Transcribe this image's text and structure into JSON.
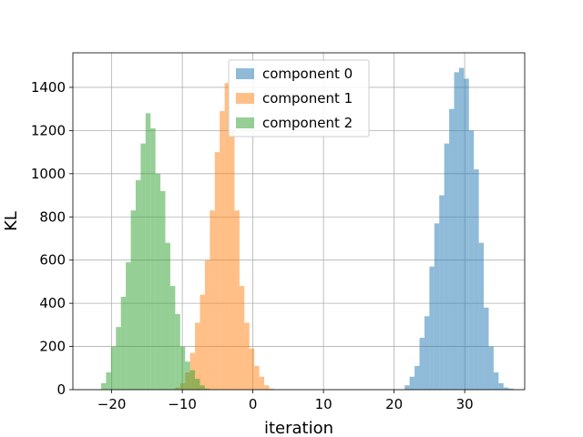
{
  "chart_data": {
    "type": "histogram",
    "title": "",
    "xlabel": "iteration",
    "ylabel": "KL",
    "xlim": [
      -25.5,
      38.5
    ],
    "ylim": [
      0,
      1560
    ],
    "xticks": [
      -20,
      -10,
      0,
      10,
      20,
      30
    ],
    "xtick_labels": [
      "−20",
      "−10",
      "0",
      "10",
      "20",
      "30"
    ],
    "yticks": [
      0,
      200,
      400,
      600,
      800,
      1000,
      1200,
      1400
    ],
    "grid": true,
    "legend_position": "upper-center",
    "bin_width": 0.7,
    "series": [
      {
        "name": "component 0",
        "color": "#1f77b4",
        "bins_start": 21.5,
        "counts": [
          20,
          60,
          110,
          240,
          340,
          570,
          770,
          900,
          1140,
          1300,
          1470,
          1490,
          1440,
          1200,
          1020,
          680,
          380,
          200,
          80,
          30,
          10,
          5
        ]
      },
      {
        "name": "component 1",
        "color": "#ff7f0e",
        "bins_start": -11.0,
        "counts": [
          10,
          30,
          80,
          170,
          310,
          440,
          600,
          830,
          1100,
          1290,
          1420,
          1200,
          830,
          480,
          310,
          190,
          110,
          60,
          20,
          5
        ]
      },
      {
        "name": "component 2",
        "color": "#2ca02c",
        "bins_start": -21.5,
        "counts": [
          30,
          80,
          200,
          290,
          430,
          590,
          830,
          970,
          1140,
          1280,
          1210,
          1000,
          920,
          680,
          480,
          350,
          200,
          130,
          90,
          50,
          20,
          5
        ]
      }
    ]
  }
}
